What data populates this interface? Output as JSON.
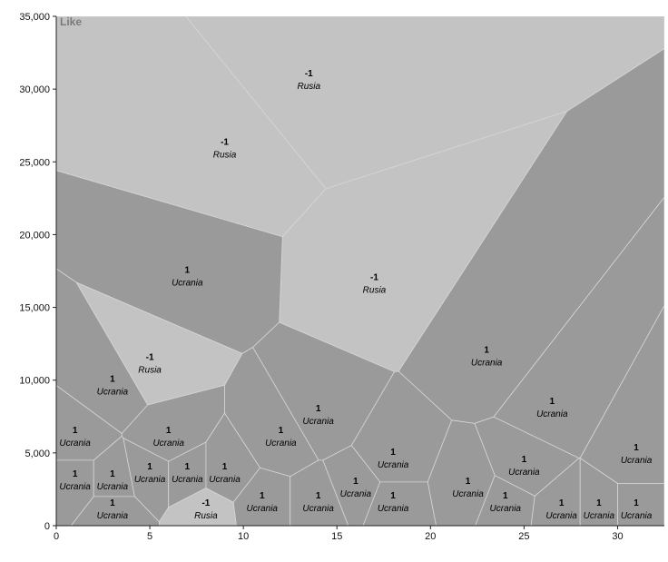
{
  "chart_data": {
    "type": "voronoi",
    "corner_label": "Like",
    "xlim": [
      0,
      32.5
    ],
    "ylim": [
      0,
      35000
    ],
    "x_ticks": [
      0,
      5,
      10,
      15,
      20,
      25,
      30
    ],
    "y_ticks": [
      0,
      5000,
      10000,
      15000,
      20000,
      25000,
      30000,
      35000
    ],
    "y_tick_labels": [
      "0",
      "5,000",
      "10,000",
      "15,000",
      "20,000",
      "25,000",
      "30,000",
      "35,000"
    ],
    "grid": false,
    "colors": {
      "Ucrania": "#9a9a9a",
      "Rusia": "#c3c3c3",
      "border": "#d6d6d6"
    },
    "points": [
      {
        "x": 13.5,
        "y": 30500,
        "value": "-1",
        "country": "Rusia"
      },
      {
        "x": 9,
        "y": 25800,
        "value": "-1",
        "country": "Rusia"
      },
      {
        "x": 17,
        "y": 16500,
        "value": "-1",
        "country": "Rusia"
      },
      {
        "x": 7,
        "y": 17000,
        "value": "1",
        "country": "Ucrania"
      },
      {
        "x": 23,
        "y": 11500,
        "value": "1",
        "country": "Ucrania"
      },
      {
        "x": 5,
        "y": 11000,
        "value": "-1",
        "country": "Rusia"
      },
      {
        "x": 3,
        "y": 9500,
        "value": "1",
        "country": "Ucrania"
      },
      {
        "x": 14,
        "y": 7500,
        "value": "1",
        "country": "Ucrania"
      },
      {
        "x": 26.5,
        "y": 8000,
        "value": "1",
        "country": "Ucrania"
      },
      {
        "x": 1,
        "y": 6000,
        "value": "1",
        "country": "Ucrania"
      },
      {
        "x": 6,
        "y": 6000,
        "value": "1",
        "country": "Ucrania"
      },
      {
        "x": 12,
        "y": 6000,
        "value": "1",
        "country": "Ucrania"
      },
      {
        "x": 18,
        "y": 4500,
        "value": "1",
        "country": "Ucrania"
      },
      {
        "x": 31,
        "y": 4800,
        "value": "1",
        "country": "Ucrania"
      },
      {
        "x": 25,
        "y": 4000,
        "value": "1",
        "country": "Ucrania"
      },
      {
        "x": 1,
        "y": 3000,
        "value": "1",
        "country": "Ucrania"
      },
      {
        "x": 3,
        "y": 3000,
        "value": "1",
        "country": "Ucrania"
      },
      {
        "x": 5,
        "y": 3500,
        "value": "1",
        "country": "Ucrania"
      },
      {
        "x": 7,
        "y": 3500,
        "value": "1",
        "country": "Ucrania"
      },
      {
        "x": 9,
        "y": 3500,
        "value": "1",
        "country": "Ucrania"
      },
      {
        "x": 16,
        "y": 2500,
        "value": "1",
        "country": "Ucrania"
      },
      {
        "x": 22,
        "y": 2500,
        "value": "1",
        "country": "Ucrania"
      },
      {
        "x": 11,
        "y": 1500,
        "value": "1",
        "country": "Ucrania"
      },
      {
        "x": 14,
        "y": 1500,
        "value": "1",
        "country": "Ucrania"
      },
      {
        "x": 18,
        "y": 1500,
        "value": "1",
        "country": "Ucrania"
      },
      {
        "x": 24,
        "y": 1500,
        "value": "1",
        "country": "Ucrania"
      },
      {
        "x": 3,
        "y": 1000,
        "value": "1",
        "country": "Ucrania"
      },
      {
        "x": 8,
        "y": 1000,
        "value": "-1",
        "country": "Rusia"
      },
      {
        "x": 27,
        "y": 1000,
        "value": "1",
        "country": "Ucrania"
      },
      {
        "x": 29,
        "y": 1000,
        "value": "1",
        "country": "Ucrania"
      },
      {
        "x": 31,
        "y": 1000,
        "value": "1",
        "country": "Ucrania"
      }
    ]
  }
}
